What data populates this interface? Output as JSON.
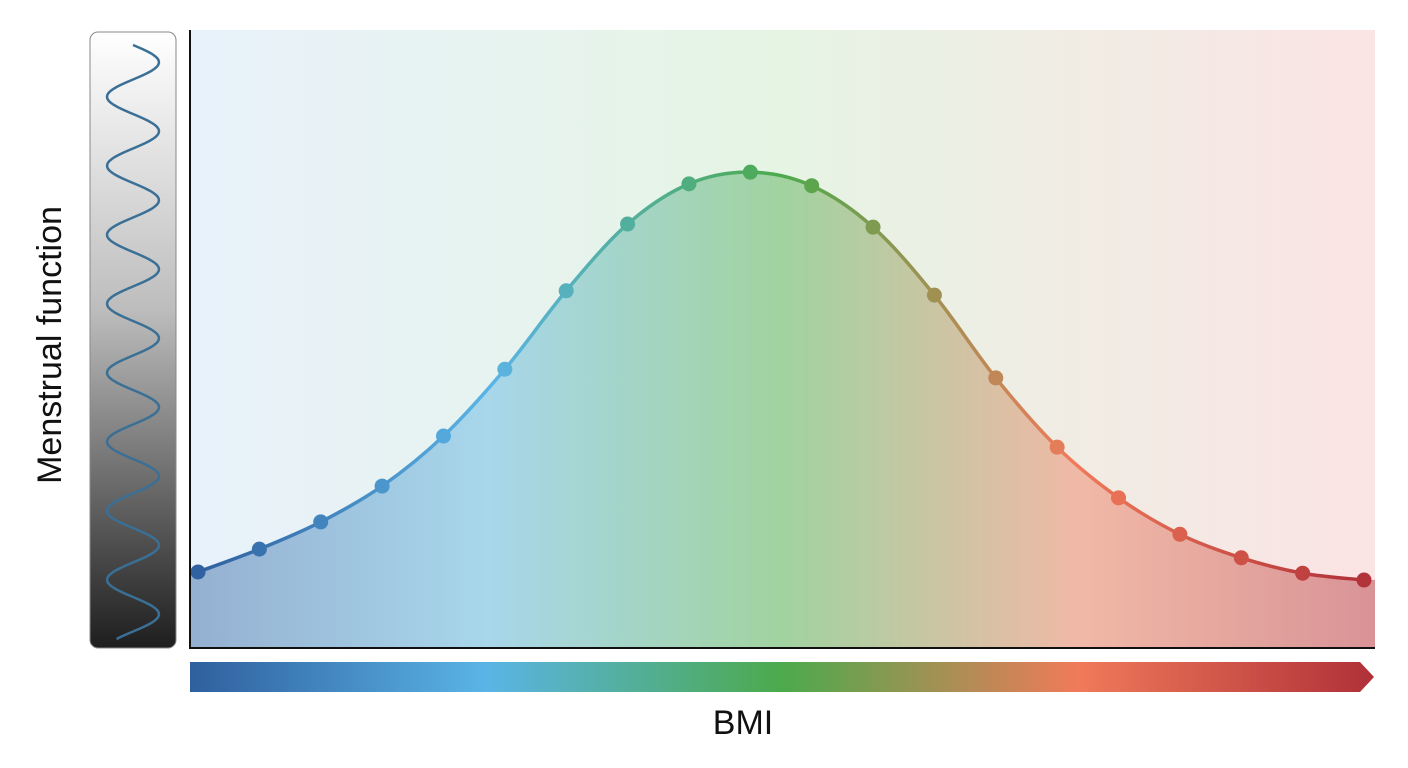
{
  "chart_data": {
    "type": "line",
    "xlabel": "BMI",
    "ylabel": "Menstrual function",
    "categories": [
      null,
      null,
      null,
      null,
      null,
      null,
      null,
      null,
      null,
      null,
      null,
      null,
      null,
      null,
      null,
      null,
      null,
      null,
      null,
      null
    ],
    "series": [
      {
        "values": [
          12.3,
          16.0,
          20.4,
          26.2,
          34.3,
          45.1,
          57.8,
          68.6,
          75.1,
          77.0,
          74.8,
          68.1,
          57.1,
          43.7,
          32.5,
          24.3,
          18.4,
          14.6,
          12.1,
          11.0
        ]
      }
    ],
    "ylim": [
      0,
      100
    ],
    "colorscale": [
      "#2f5f9e",
      "#5ab4e6",
      "#4caa4c",
      "#f07a5a",
      "#b03038"
    ],
    "grid": false
  }
}
